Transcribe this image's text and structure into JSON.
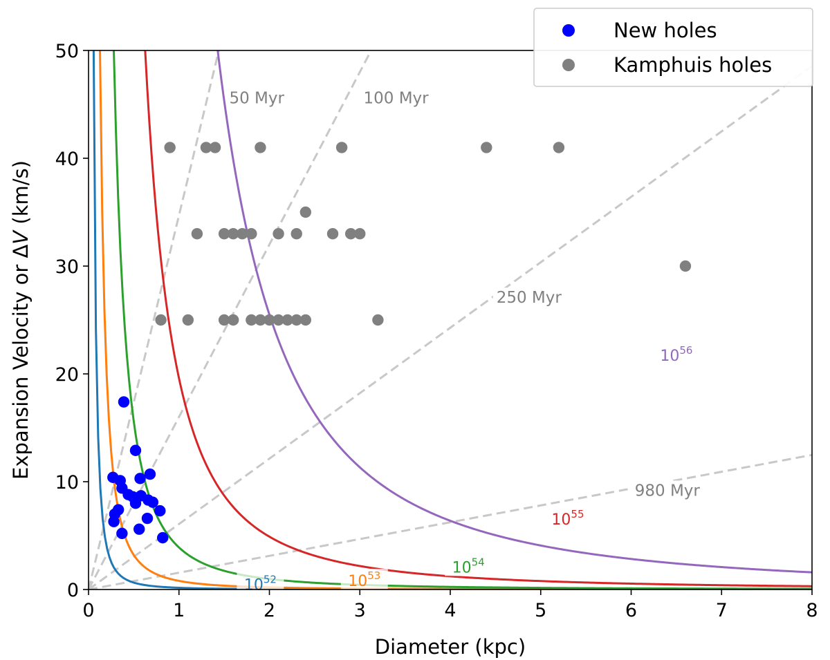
{
  "chart_data": {
    "type": "scatter",
    "xlabel": "Diameter (kpc)",
    "ylabel_prefix": "Expansion Velocity or Δ",
    "ylabel_var": "V",
    "ylabel_suffix": " (km/s)",
    "xlim": [
      0,
      8
    ],
    "ylim": [
      0,
      50
    ],
    "xticks": [
      0,
      1,
      2,
      3,
      4,
      5,
      6,
      7,
      8
    ],
    "yticks": [
      0,
      10,
      20,
      30,
      40,
      50
    ],
    "legend": {
      "placement": "top-right",
      "entries": [
        {
          "label": "New holes",
          "color": "#0000ff"
        },
        {
          "label": "Kamphuis holes",
          "color": "#808080"
        }
      ]
    },
    "series": [
      {
        "name": "New holes",
        "color": "#0000ff",
        "points": [
          [
            0.39,
            17.4
          ],
          [
            0.52,
            12.9
          ],
          [
            0.27,
            10.4
          ],
          [
            0.35,
            10.1
          ],
          [
            0.57,
            10.3
          ],
          [
            0.68,
            10.7
          ],
          [
            0.37,
            9.4
          ],
          [
            0.44,
            8.8
          ],
          [
            0.49,
            8.6
          ],
          [
            0.58,
            8.7
          ],
          [
            0.66,
            8.3
          ],
          [
            0.71,
            8.1
          ],
          [
            0.52,
            8.0
          ],
          [
            0.33,
            7.4
          ],
          [
            0.29,
            7.0
          ],
          [
            0.79,
            7.3
          ],
          [
            0.28,
            6.3
          ],
          [
            0.65,
            6.6
          ],
          [
            0.56,
            5.6
          ],
          [
            0.37,
            5.2
          ],
          [
            0.82,
            4.8
          ]
        ]
      },
      {
        "name": "Kamphuis holes",
        "color": "#808080",
        "points": [
          [
            0.9,
            41
          ],
          [
            1.3,
            41
          ],
          [
            1.4,
            41
          ],
          [
            1.9,
            41
          ],
          [
            2.8,
            41
          ],
          [
            4.4,
            41
          ],
          [
            5.2,
            41
          ],
          [
            2.4,
            35
          ],
          [
            1.2,
            33
          ],
          [
            1.5,
            33
          ],
          [
            1.6,
            33
          ],
          [
            1.7,
            33
          ],
          [
            1.8,
            33
          ],
          [
            2.1,
            33
          ],
          [
            2.3,
            33
          ],
          [
            2.7,
            33
          ],
          [
            2.9,
            33
          ],
          [
            3.0,
            33
          ],
          [
            6.6,
            30
          ],
          [
            0.8,
            25
          ],
          [
            1.1,
            25
          ],
          [
            1.5,
            25
          ],
          [
            1.6,
            25
          ],
          [
            1.8,
            25
          ],
          [
            1.9,
            25
          ],
          [
            2.0,
            25
          ],
          [
            2.1,
            25
          ],
          [
            2.2,
            25
          ],
          [
            2.3,
            25
          ],
          [
            2.4,
            25
          ],
          [
            3.2,
            25
          ]
        ]
      }
    ],
    "energy_curves": [
      {
        "name": "10^52",
        "base": "10",
        "exponent": "52",
        "coefficient": 0.16,
        "color": "#1f77b4",
        "label_at": [
          1.9,
          0.56
        ]
      },
      {
        "name": "10^53",
        "base": "10",
        "exponent": "53",
        "coefficient": 0.8,
        "color": "#ff7f0e",
        "label_at": [
          3.05,
          0.9
        ]
      },
      {
        "name": "10^54",
        "base": "10",
        "exponent": "54",
        "coefficient": 3.9,
        "color": "#2ca02c",
        "label_at": [
          4.2,
          2.15
        ]
      },
      {
        "name": "10^55",
        "base": "10",
        "exponent": "55",
        "coefficient": 19.6,
        "color": "#d62728",
        "label_at": [
          5.3,
          6.6
        ]
      },
      {
        "name": "10^56",
        "base": "10",
        "exponent": "56",
        "coefficient": 102,
        "color": "#9467bd",
        "label_at": [
          6.5,
          21.8
        ]
      }
    ],
    "age_lines": [
      {
        "label": "50 Myr",
        "slope": 34.7,
        "label_at": [
          1.86,
          45.6
        ]
      },
      {
        "label": "100 Myr",
        "slope": 16.0,
        "label_at": [
          3.4,
          45.6
        ]
      },
      {
        "name": "250 Myr",
        "label": "250 Myr",
        "slope": 6.07,
        "label_at": [
          4.87,
          27.1
        ]
      },
      {
        "label": "980 Myr",
        "slope": 1.56,
        "label_at": [
          6.4,
          9.2
        ]
      }
    ]
  }
}
